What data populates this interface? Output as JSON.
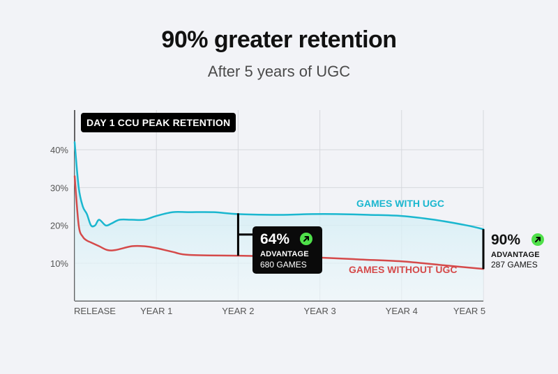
{
  "title": "90% greater retention",
  "subtitle": "After 5 years of UGC",
  "chart_badge": "DAY 1 CCU PEAK RETENTION",
  "colors": {
    "with_ugc": "#1bb7cf",
    "without_ugc": "#d54a4a",
    "area_top": "#bfe7f1",
    "area_bottom": "#eef8fb",
    "grid": "#d6d8dd",
    "callout_bg": "#0a0a0a",
    "up_icon": "#4fe04a"
  },
  "mid_callout": {
    "percent": "64%",
    "label": "ADVANTAGE",
    "games": "680 GAMES",
    "icon": "arrow-up-right-icon"
  },
  "end_callout": {
    "percent": "90%",
    "label": "ADVANTAGE",
    "games": "287 GAMES",
    "icon": "arrow-up-right-icon"
  },
  "chart_data": {
    "type": "line",
    "title": "DAY 1 CCU PEAK RETENTION",
    "x_ticks": [
      "RELEASE",
      "YEAR 1",
      "YEAR 2",
      "YEAR 3",
      "YEAR 4",
      "YEAR 5"
    ],
    "y_ticks": [
      "10%",
      "20%",
      "30%",
      "40%"
    ],
    "xlim": [
      0,
      5
    ],
    "ylim": [
      0,
      50
    ],
    "ylabel": "",
    "xlabel": "",
    "grid": true,
    "series": [
      {
        "name": "GAMES WITH UGC",
        "x": [
          0,
          0.05,
          0.1,
          0.15,
          0.2,
          0.25,
          0.3,
          0.38,
          0.45,
          0.55,
          0.7,
          0.85,
          1.0,
          1.2,
          1.4,
          1.7,
          2.0,
          2.5,
          2.9,
          3.2,
          3.6,
          4.0,
          4.4,
          4.8,
          5.0
        ],
        "y": [
          42,
          30,
          25,
          23,
          20,
          20,
          21.5,
          20,
          20.5,
          21.5,
          21.5,
          21.5,
          22.5,
          23.5,
          23.5,
          23.5,
          23,
          22.8,
          23,
          23,
          22.8,
          22.5,
          21.5,
          20,
          19
        ]
      },
      {
        "name": "GAMES WITHOUT UGC",
        "x": [
          0,
          0.05,
          0.1,
          0.15,
          0.2,
          0.3,
          0.4,
          0.5,
          0.7,
          0.85,
          1.0,
          1.2,
          1.4,
          2.0,
          2.5,
          3.0,
          3.5,
          4.0,
          4.5,
          5.0
        ],
        "y": [
          33,
          20,
          17,
          16,
          15.5,
          14.5,
          13.5,
          13.5,
          14.5,
          14.5,
          14,
          13,
          12.2,
          12,
          11.8,
          11.5,
          11,
          10.5,
          9.5,
          8.5
        ]
      }
    ],
    "annotations": [
      {
        "x": 2,
        "text": "64% ADVANTAGE 680 GAMES"
      },
      {
        "x": 5,
        "text": "90% ADVANTAGE 287 GAMES"
      }
    ]
  }
}
